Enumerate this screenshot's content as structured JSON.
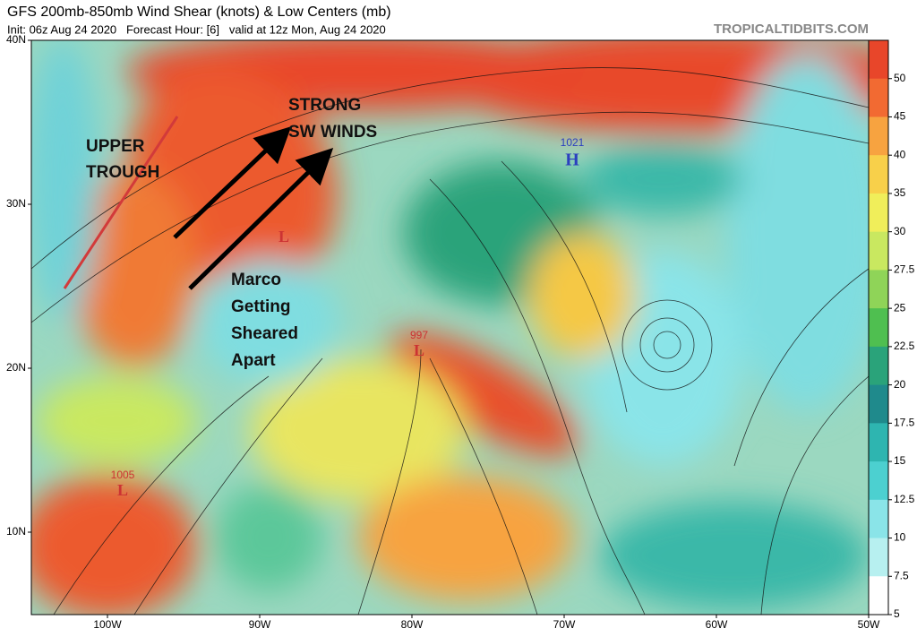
{
  "header": {
    "title": "GFS 200mb-850mb Wind Shear (knots) & Low Centers (mb)",
    "subtitle": "Init: 06z Aug 24 2020   Forecast Hour: [6]   valid at 12z Mon, Aug 24 2020",
    "source": "TROPICALTIDBITS.COM"
  },
  "axes": {
    "lat_labels": [
      "40N",
      "30N",
      "20N",
      "10N"
    ],
    "lon_labels": [
      "100W",
      "90W",
      "80W",
      "70W",
      "60W",
      "50W"
    ]
  },
  "colorbar": {
    "labels": [
      50,
      45,
      40,
      35,
      30,
      27.5,
      25,
      22.5,
      20,
      17.5,
      15,
      12.5,
      10,
      7.5,
      5
    ],
    "colors": [
      "#e8462a",
      "#f26a32",
      "#f7a340",
      "#f8d04a",
      "#f0ee5a",
      "#c9e860",
      "#8fd458",
      "#4fbf50",
      "#2aa37a",
      "#1f8a8c",
      "#2eb5b0",
      "#4cd0d0",
      "#8ae4e8",
      "#b7f0f0",
      "#ffffff"
    ]
  },
  "annotations": {
    "upper_trough": [
      "UPPER",
      "TROUGH"
    ],
    "strong_winds": [
      "STRONG",
      "SW WINDS"
    ],
    "marco": [
      "Marco",
      "Getting",
      "Sheared",
      "Apart"
    ]
  },
  "centers": [
    {
      "letter": "H",
      "pressure": "1021"
    },
    {
      "letter": "L",
      "pressure": "997"
    },
    {
      "letter": "L",
      "pressure": "1005"
    },
    {
      "letter": "L"
    }
  ]
}
